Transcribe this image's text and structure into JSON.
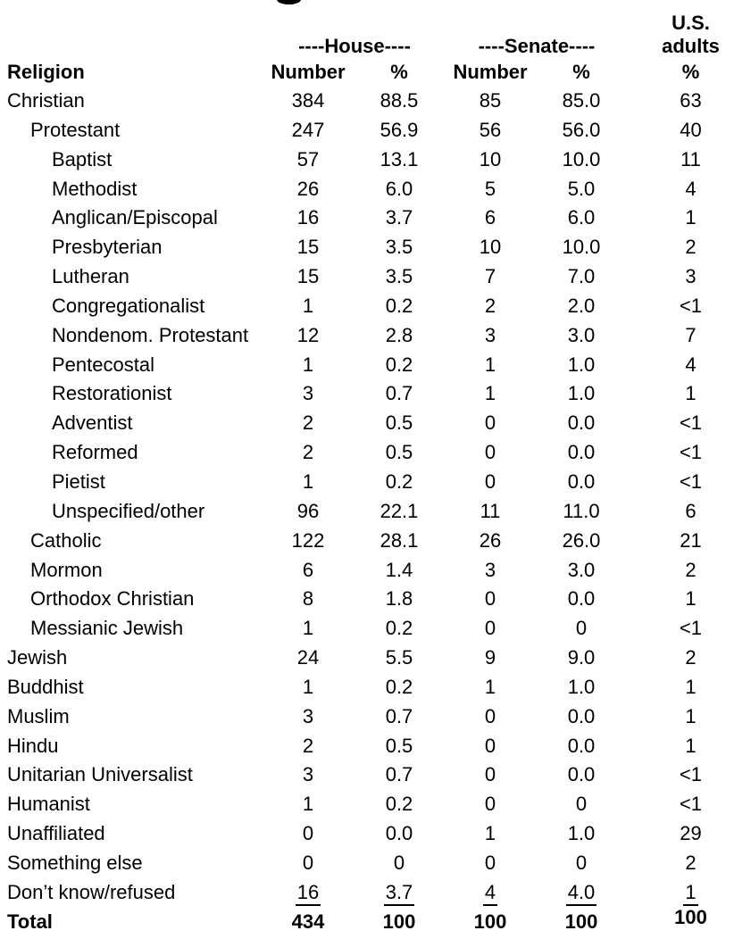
{
  "header": {
    "us_line1": "U.S.",
    "us_line2": "adults",
    "house_group": "----House----",
    "senate_group": "----Senate----",
    "religion": "Religion",
    "number": "Number",
    "pct": "%"
  },
  "colors": {
    "text": "#000000",
    "background": "#ffffff"
  },
  "chart_data": {
    "type": "table",
    "column_groups": [
      "House",
      "Senate",
      "U.S. adults"
    ],
    "columns": [
      "Religion",
      "House Number",
      "House %",
      "Senate Number",
      "Senate %",
      "U.S. adults %"
    ],
    "rows": [
      {
        "label": "Christian",
        "indent": 0,
        "values": [
          "384",
          "88.5",
          "85",
          "85.0",
          "63"
        ]
      },
      {
        "label": "Protestant",
        "indent": 1,
        "values": [
          "247",
          "56.9",
          "56",
          "56.0",
          "40"
        ]
      },
      {
        "label": "Baptist",
        "indent": 2,
        "values": [
          "57",
          "13.1",
          "10",
          "10.0",
          "11"
        ]
      },
      {
        "label": "Methodist",
        "indent": 2,
        "values": [
          "26",
          "6.0",
          "5",
          "5.0",
          "4"
        ]
      },
      {
        "label": "Anglican/Episcopal",
        "indent": 2,
        "values": [
          "16",
          "3.7",
          "6",
          "6.0",
          "1"
        ]
      },
      {
        "label": "Presbyterian",
        "indent": 2,
        "values": [
          "15",
          "3.5",
          "10",
          "10.0",
          "2"
        ]
      },
      {
        "label": "Lutheran",
        "indent": 2,
        "values": [
          "15",
          "3.5",
          "7",
          "7.0",
          "3"
        ]
      },
      {
        "label": "Congregationalist",
        "indent": 2,
        "values": [
          "1",
          "0.2",
          "2",
          "2.0",
          "<1"
        ]
      },
      {
        "label": "Nondenom. Protestant",
        "indent": 2,
        "values": [
          "12",
          "2.8",
          "3",
          "3.0",
          "7"
        ]
      },
      {
        "label": "Pentecostal",
        "indent": 2,
        "values": [
          "1",
          "0.2",
          "1",
          "1.0",
          "4"
        ]
      },
      {
        "label": "Restorationist",
        "indent": 2,
        "values": [
          "3",
          "0.7",
          "1",
          "1.0",
          "1"
        ]
      },
      {
        "label": "Adventist",
        "indent": 2,
        "values": [
          "2",
          "0.5",
          "0",
          "0.0",
          "<1"
        ]
      },
      {
        "label": "Reformed",
        "indent": 2,
        "values": [
          "2",
          "0.5",
          "0",
          "0.0",
          "<1"
        ]
      },
      {
        "label": "Pietist",
        "indent": 2,
        "values": [
          "1",
          "0.2",
          "0",
          "0.0",
          "<1"
        ]
      },
      {
        "label": "Unspecified/other",
        "indent": 2,
        "values": [
          "96",
          "22.1",
          "11",
          "11.0",
          "6"
        ]
      },
      {
        "label": "Catholic",
        "indent": 1,
        "values": [
          "122",
          "28.1",
          "26",
          "26.0",
          "21"
        ]
      },
      {
        "label": "Mormon",
        "indent": 1,
        "values": [
          "6",
          "1.4",
          "3",
          "3.0",
          "2"
        ]
      },
      {
        "label": "Orthodox Christian",
        "indent": 1,
        "values": [
          "8",
          "1.8",
          "0",
          "0.0",
          "1"
        ]
      },
      {
        "label": "Messianic Jewish",
        "indent": 1,
        "values": [
          "1",
          "0.2",
          "0",
          "0",
          "<1"
        ]
      },
      {
        "label": "Jewish",
        "indent": 0,
        "values": [
          "24",
          "5.5",
          "9",
          "9.0",
          "2"
        ]
      },
      {
        "label": "Buddhist",
        "indent": 0,
        "values": [
          "1",
          "0.2",
          "1",
          "1.0",
          "1"
        ]
      },
      {
        "label": "Muslim",
        "indent": 0,
        "values": [
          "3",
          "0.7",
          "0",
          "0.0",
          "1"
        ]
      },
      {
        "label": "Hindu",
        "indent": 0,
        "values": [
          "2",
          "0.5",
          "0",
          "0.0",
          "1"
        ]
      },
      {
        "label": "Unitarian Universalist",
        "indent": 0,
        "values": [
          "3",
          "0.7",
          "0",
          "0.0",
          "<1"
        ]
      },
      {
        "label": "Humanist",
        "indent": 0,
        "values": [
          "1",
          "0.2",
          "0",
          "0",
          "<1"
        ]
      },
      {
        "label": "Unaffiliated",
        "indent": 0,
        "values": [
          "0",
          "0.0",
          "1",
          "1.0",
          "29"
        ]
      },
      {
        "label": "Something else",
        "indent": 0,
        "values": [
          "0",
          "0",
          "0",
          "0",
          "2"
        ]
      },
      {
        "label": "Don’t know/refused",
        "indent": 0,
        "underline": true,
        "values": [
          "16",
          "3.7",
          "4",
          "4.0",
          "1"
        ]
      },
      {
        "label": "Total",
        "indent": 0,
        "bold": true,
        "values": [
          "434",
          "100",
          "100",
          "100",
          "100"
        ]
      }
    ]
  }
}
